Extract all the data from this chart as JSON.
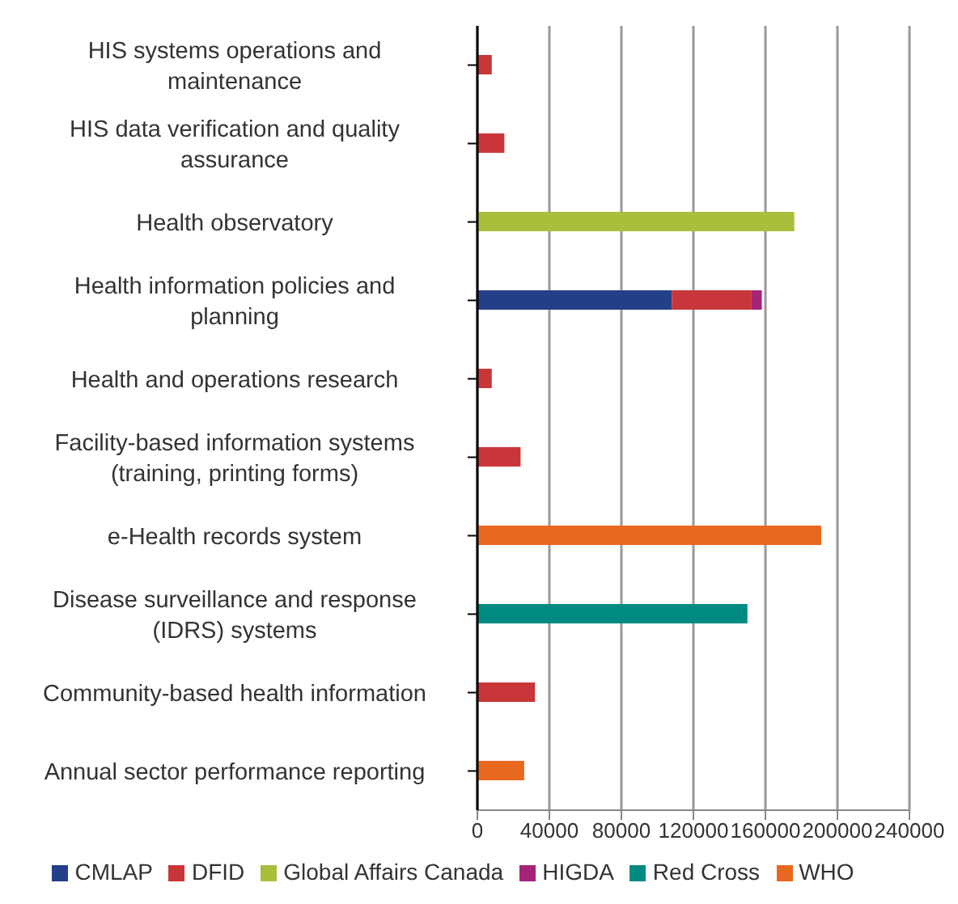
{
  "chart_data": {
    "type": "bar",
    "orientation": "horizontal",
    "stacked": true,
    "categories": [
      "HIS systems operations and maintenance",
      "HIS data verification and quality assurance",
      "Health observatory",
      "Health information policies and planning",
      "Health and operations research",
      "Facility-based information systems (training, printing forms)",
      "e-Health records system",
      "Disease surveillance and response (IDRS) systems",
      "Community-based health information",
      "Annual sector performance reporting"
    ],
    "series": [
      {
        "name": "CMLAP",
        "color": "#233f87",
        "values": [
          null,
          null,
          null,
          108000,
          null,
          null,
          null,
          null,
          null,
          null
        ]
      },
      {
        "name": "DFID",
        "color": "#c8363a",
        "values": [
          8000,
          15000,
          null,
          44000,
          8000,
          24000,
          null,
          null,
          32000,
          null
        ]
      },
      {
        "name": "Global Affairs Canada",
        "color": "#a9be3a",
        "values": [
          null,
          null,
          176000,
          null,
          null,
          null,
          null,
          null,
          null,
          null
        ]
      },
      {
        "name": "HIGDA",
        "color": "#a62477",
        "values": [
          null,
          null,
          null,
          6000,
          null,
          null,
          null,
          null,
          null,
          null
        ]
      },
      {
        "name": "Red Cross",
        "color": "#008b82",
        "values": [
          null,
          null,
          null,
          null,
          null,
          null,
          null,
          150000,
          null,
          null
        ]
      },
      {
        "name": "WHO",
        "color": "#e8681f",
        "values": [
          null,
          null,
          null,
          null,
          null,
          null,
          191000,
          null,
          null,
          26000
        ]
      }
    ],
    "xlim": [
      0,
      240000
    ],
    "xticks": [
      0,
      40000,
      80000,
      120000,
      160000,
      200000,
      240000
    ],
    "grid": "x",
    "legend": "bottom"
  }
}
